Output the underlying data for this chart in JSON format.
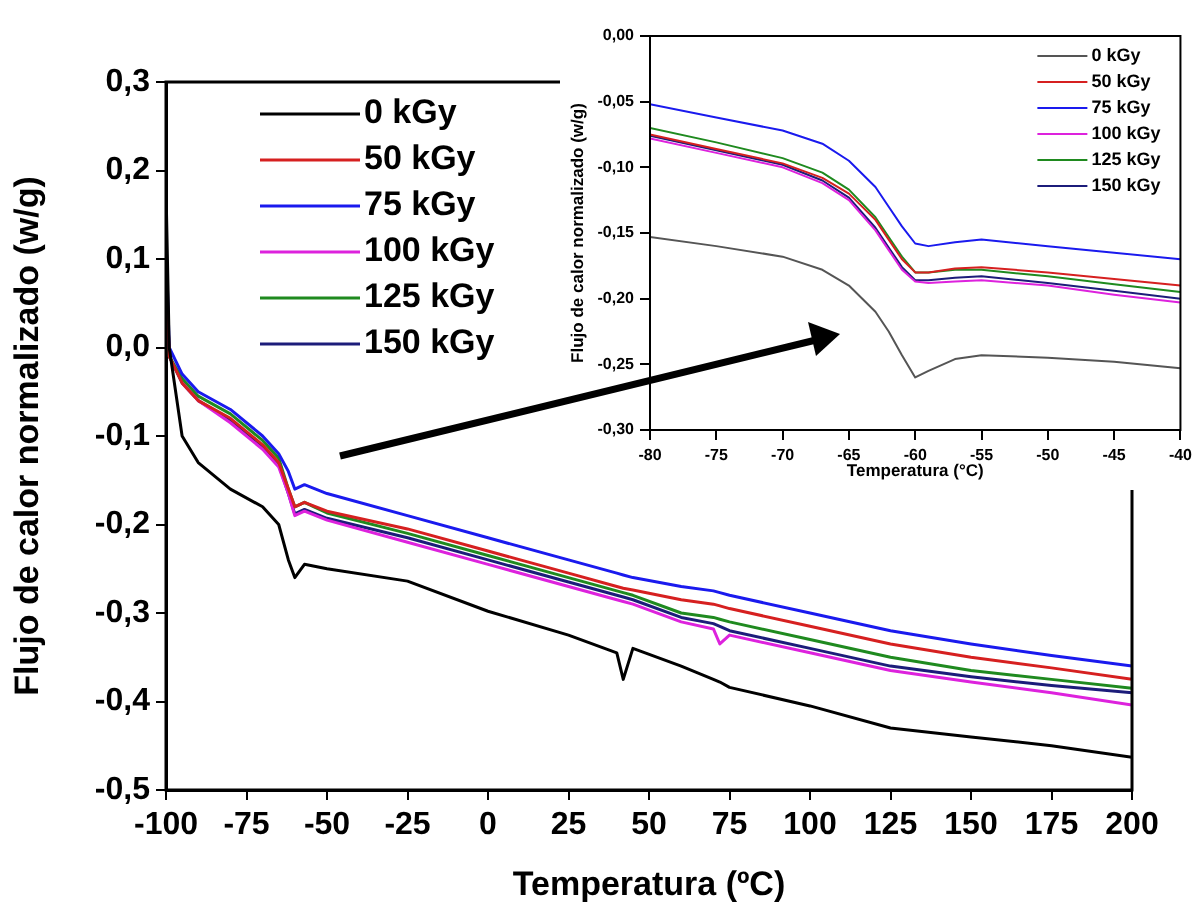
{
  "chart_data": [
    {
      "type": "line",
      "xlabel": "Temperatura (ºC)",
      "ylabel": "Flujo de calor normalizado (w/g)",
      "x": [
        -100,
        -99,
        -95,
        -90,
        -80,
        -70,
        -65,
        -62,
        -60,
        -57,
        -50,
        -25,
        0,
        25,
        40,
        42,
        45,
        60,
        70,
        72,
        75,
        100,
        125,
        150,
        175,
        200
      ],
      "series": [
        {
          "name": "0 kGy",
          "color": "#000000",
          "values": [
            0.18,
            0.0,
            -0.1,
            -0.13,
            -0.16,
            -0.18,
            -0.2,
            -0.24,
            -0.26,
            -0.245,
            -0.25,
            -0.264,
            -0.298,
            -0.325,
            -0.345,
            -0.375,
            -0.34,
            -0.36,
            -0.375,
            -0.378,
            -0.384,
            -0.405,
            -0.43,
            -0.44,
            -0.45,
            -0.463
          ]
        },
        {
          "name": "50 kGy",
          "color": "#d62020",
          "values": [
            0.1,
            -0.01,
            -0.04,
            -0.06,
            -0.08,
            -0.11,
            -0.13,
            -0.16,
            -0.18,
            -0.175,
            -0.185,
            -0.205,
            -0.23,
            -0.255,
            -0.27,
            -0.272,
            -0.274,
            -0.285,
            -0.29,
            -0.292,
            -0.295,
            -0.315,
            -0.335,
            -0.35,
            -0.362,
            -0.375
          ]
        },
        {
          "name": "75 kGy",
          "color": "#1a1aee",
          "values": [
            0.12,
            0.0,
            -0.03,
            -0.05,
            -0.07,
            -0.1,
            -0.12,
            -0.14,
            -0.16,
            -0.155,
            -0.165,
            -0.19,
            -0.215,
            -0.24,
            -0.255,
            -0.257,
            -0.26,
            -0.27,
            -0.275,
            -0.277,
            -0.28,
            -0.3,
            -0.32,
            -0.335,
            -0.348,
            -0.36
          ]
        },
        {
          "name": "100 kGy",
          "color": "#dd22dd",
          "values": [
            null,
            null,
            -0.04,
            -0.06,
            -0.085,
            -0.115,
            -0.135,
            -0.165,
            -0.19,
            -0.185,
            -0.195,
            -0.22,
            -0.245,
            -0.27,
            -0.285,
            -0.287,
            -0.29,
            -0.31,
            -0.318,
            -0.335,
            -0.325,
            -0.345,
            -0.365,
            -0.378,
            -0.39,
            -0.404
          ]
        },
        {
          "name": "125 kGy",
          "color": "#1f8a1f",
          "values": [
            0.1,
            -0.01,
            -0.035,
            -0.055,
            -0.075,
            -0.105,
            -0.125,
            -0.16,
            -0.18,
            -0.175,
            -0.187,
            -0.21,
            -0.235,
            -0.26,
            -0.275,
            -0.277,
            -0.28,
            -0.3,
            -0.305,
            -0.307,
            -0.31,
            -0.33,
            -0.35,
            -0.365,
            -0.375,
            -0.385
          ]
        },
        {
          "name": "150 kGy",
          "color": "#1c1c7a",
          "values": [
            0.1,
            -0.01,
            -0.04,
            -0.06,
            -0.082,
            -0.112,
            -0.132,
            -0.165,
            -0.188,
            -0.183,
            -0.193,
            -0.215,
            -0.24,
            -0.265,
            -0.28,
            -0.282,
            -0.285,
            -0.305,
            -0.312,
            -0.315,
            -0.32,
            -0.34,
            -0.36,
            -0.372,
            -0.382,
            -0.39
          ]
        }
      ],
      "xlim": [
        -100,
        200
      ],
      "xticks": [
        -100,
        -75,
        -50,
        -25,
        0,
        25,
        50,
        75,
        100,
        125,
        150,
        175,
        200
      ],
      "ylim": [
        -0.5,
        0.3
      ],
      "yticks": [
        {
          "value": -0.5,
          "label": "-0,5"
        },
        {
          "value": -0.4,
          "label": "-0,4"
        },
        {
          "value": -0.3,
          "label": "-0,3"
        },
        {
          "value": -0.2,
          "label": "-0,2"
        },
        {
          "value": -0.1,
          "label": "-0,1"
        },
        {
          "value": 0,
          "label": "0,0"
        },
        {
          "value": 0.1,
          "label": "0,1"
        },
        {
          "value": 0.2,
          "label": "0,2"
        },
        {
          "value": 0.3,
          "label": "0,3"
        }
      ],
      "legend": "top left",
      "marker": "none",
      "line_style": "solid"
    },
    {
      "type": "line",
      "xlabel": "Temperatura (°C)",
      "ylabel": "Flujo de calor normalizado (w/g)",
      "x": [
        -80,
        -75,
        -70,
        -67,
        -65,
        -63,
        -62,
        -61,
        -60,
        -59,
        -57,
        -55,
        -50,
        -45,
        -40
      ],
      "series": [
        {
          "name": "0 kGy",
          "color": "#555555",
          "values": [
            -0.153,
            -0.16,
            -0.168,
            -0.178,
            -0.19,
            -0.21,
            -0.225,
            -0.243,
            -0.26,
            -0.255,
            -0.246,
            -0.243,
            -0.245,
            -0.248,
            -0.253
          ]
        },
        {
          "name": "50 kGy",
          "color": "#d62020",
          "values": [
            -0.075,
            -0.086,
            -0.097,
            -0.108,
            -0.12,
            -0.14,
            -0.155,
            -0.17,
            -0.18,
            -0.18,
            -0.177,
            -0.176,
            -0.18,
            -0.185,
            -0.19
          ]
        },
        {
          "name": "75 kGy",
          "color": "#1a1aee",
          "values": [
            -0.052,
            -0.062,
            -0.072,
            -0.082,
            -0.095,
            -0.115,
            -0.13,
            -0.145,
            -0.158,
            -0.16,
            -0.157,
            -0.155,
            -0.16,
            -0.165,
            -0.17
          ]
        },
        {
          "name": "100 kGy",
          "color": "#dd22dd",
          "values": [
            -0.078,
            -0.089,
            -0.1,
            -0.112,
            -0.125,
            -0.148,
            -0.163,
            -0.178,
            -0.187,
            -0.188,
            -0.187,
            -0.186,
            -0.19,
            -0.197,
            -0.203
          ]
        },
        {
          "name": "125 kGy",
          "color": "#1f8a1f",
          "values": [
            -0.07,
            -0.081,
            -0.093,
            -0.104,
            -0.117,
            -0.138,
            -0.153,
            -0.168,
            -0.18,
            -0.18,
            -0.178,
            -0.178,
            -0.183,
            -0.189,
            -0.195
          ]
        },
        {
          "name": "150 kGy",
          "color": "#1c1c7a",
          "values": [
            -0.076,
            -0.087,
            -0.098,
            -0.11,
            -0.123,
            -0.146,
            -0.161,
            -0.176,
            -0.186,
            -0.186,
            -0.184,
            -0.183,
            -0.188,
            -0.194,
            -0.2
          ]
        }
      ],
      "xlim": [
        -80,
        -40
      ],
      "xticks": [
        -80,
        -75,
        -70,
        -65,
        -60,
        -55,
        -50,
        -45,
        -40
      ],
      "ylim": [
        -0.3,
        0
      ],
      "yticks": [
        {
          "value": -0.3,
          "label": "-0,30"
        },
        {
          "value": -0.25,
          "label": "-0,25"
        },
        {
          "value": -0.2,
          "label": "-0,20"
        },
        {
          "value": -0.15,
          "label": "-0,15"
        },
        {
          "value": -0.1,
          "label": "-0,10"
        },
        {
          "value": -0.05,
          "label": "-0,05"
        },
        {
          "value": 0,
          "label": "0,00"
        }
      ],
      "legend": "top right",
      "marker": "none",
      "line_style": "solid"
    }
  ]
}
